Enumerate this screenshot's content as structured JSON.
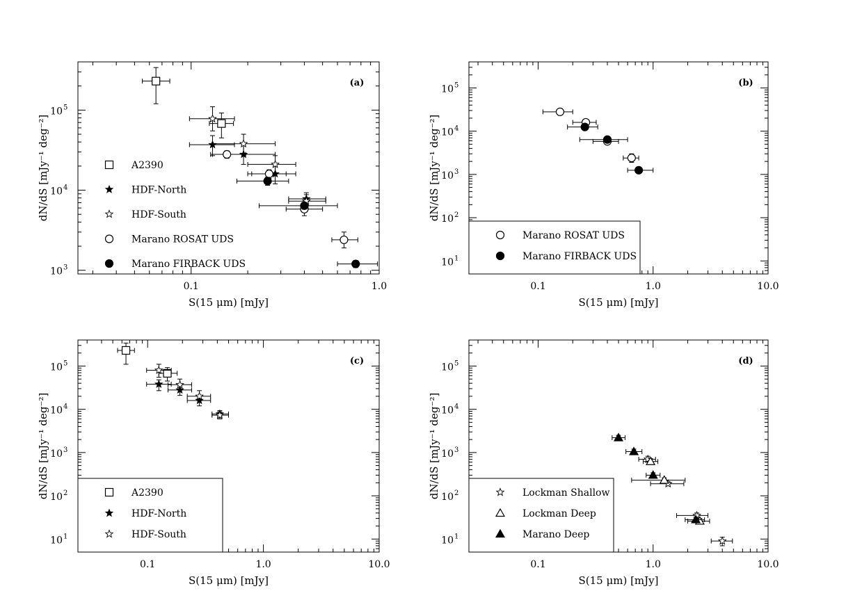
{
  "chart_data": [
    {
      "type": "scatter",
      "panel_label": "(a)",
      "xlabel": "S(15 μm) [mJy]",
      "ylabel": "dN/dS [mJy⁻¹ deg⁻²]",
      "xscale": "log",
      "yscale": "log",
      "xlim": [
        0.025,
        1.0
      ],
      "ylim": [
        900,
        400000
      ],
      "xticks": [
        {
          "value": 0.1,
          "label": "0.1"
        },
        {
          "value": 1.0,
          "label": "1.0"
        }
      ],
      "yticks": [
        {
          "value": 1000,
          "base": "10",
          "exp": "3"
        },
        {
          "value": 10000,
          "base": "10",
          "exp": "4"
        },
        {
          "value": 100000,
          "base": "10",
          "exp": "5"
        }
      ],
      "legend_position": "left-middle",
      "legend_boxed": false,
      "series": [
        {
          "name": "A2390",
          "marker": "open-square",
          "points": [
            {
              "x": 0.065,
              "y": 230000,
              "xerr": [
                0.055,
                0.077
              ],
              "yerr": [
                120000,
                340000
              ]
            },
            {
              "x": 0.145,
              "y": 68000,
              "xerr": [
                0.125,
                0.168
              ],
              "yerr": [
                45000,
                92000
              ]
            }
          ]
        },
        {
          "name": "HDF-North",
          "marker": "filled-star",
          "points": [
            {
              "x": 0.13,
              "y": 37000,
              "xerr": [
                0.098,
                0.17
              ],
              "yerr": [
                27000,
                48000
              ]
            },
            {
              "x": 0.19,
              "y": 28000,
              "xerr": [
                0.13,
                0.28
              ],
              "yerr": [
                21000,
                36000
              ]
            },
            {
              "x": 0.28,
              "y": 16000,
              "xerr": [
                0.2,
                0.36
              ],
              "yerr": [
                12000,
                20000
              ]
            },
            {
              "x": 0.41,
              "y": 7800,
              "xerr": [
                0.33,
                0.52
              ],
              "yerr": [
                6500,
                9300
              ]
            }
          ]
        },
        {
          "name": "HDF-South",
          "marker": "open-star",
          "points": [
            {
              "x": 0.13,
              "y": 78000,
              "xerr": [
                0.098,
                0.17
              ],
              "yerr": [
                55000,
                110000
              ]
            },
            {
              "x": 0.19,
              "y": 38000,
              "xerr": [
                0.13,
                0.28
              ],
              "yerr": [
                28000,
                50000
              ]
            },
            {
              "x": 0.28,
              "y": 21000,
              "xerr": [
                0.2,
                0.36
              ],
              "yerr": [
                16000,
                27000
              ]
            },
            {
              "x": 0.41,
              "y": 7300,
              "xerr": [
                0.33,
                0.52
              ],
              "yerr": [
                6000,
                8800
              ]
            }
          ]
        },
        {
          "name": "Marano ROSAT UDS",
          "marker": "open-circle",
          "points": [
            {
              "x": 0.155,
              "y": 28000,
              "xerr": [
                0.127,
                0.195
              ],
              "yerr": [
                25000,
                31000
              ]
            },
            {
              "x": 0.26,
              "y": 16000,
              "xerr": [
                0.21,
                0.32
              ],
              "yerr": [
                14000,
                18000
              ]
            },
            {
              "x": 0.4,
              "y": 5800,
              "xerr": [
                0.32,
                0.5
              ],
              "yerr": [
                4800,
                7000
              ]
            },
            {
              "x": 0.65,
              "y": 2400,
              "xerr": [
                0.56,
                0.77
              ],
              "yerr": [
                1900,
                3000
              ]
            }
          ]
        },
        {
          "name": "Marano FIRBACK UDS",
          "marker": "filled-circle",
          "points": [
            {
              "x": 0.255,
              "y": 13000,
              "xerr": [
                0.175,
                0.33
              ],
              "yerr": [
                11500,
                14500
              ]
            },
            {
              "x": 0.4,
              "y": 6400,
              "xerr": [
                0.23,
                0.6
              ],
              "yerr": [
                5800,
                7000
              ]
            },
            {
              "x": 0.75,
              "y": 1200,
              "xerr": [
                0.6,
                0.98
              ],
              "yerr": [
                1080,
                1330
              ]
            }
          ]
        }
      ]
    },
    {
      "type": "scatter",
      "panel_label": "(b)",
      "xlabel": "S(15 μm) [mJy]",
      "ylabel": "dN/dS [mJy⁻¹ deg⁻²]",
      "xscale": "log",
      "yscale": "log",
      "xlim": [
        0.025,
        10.0
      ],
      "ylim": [
        5,
        400000
      ],
      "xticks": [
        {
          "value": 0.1,
          "label": "0.1"
        },
        {
          "value": 1.0,
          "label": "1.0"
        },
        {
          "value": 10.0,
          "label": "10.0"
        }
      ],
      "yticks": [
        {
          "value": 10,
          "base": "10",
          "exp": "1"
        },
        {
          "value": 100,
          "base": "10",
          "exp": "2"
        },
        {
          "value": 1000,
          "base": "10",
          "exp": "3"
        },
        {
          "value": 10000,
          "base": "10",
          "exp": "4"
        },
        {
          "value": 100000,
          "base": "10",
          "exp": "5"
        }
      ],
      "legend_position": "bottom-left",
      "legend_boxed": true,
      "series": [
        {
          "name": "Marano ROSAT UDS",
          "marker": "open-circle",
          "points": [
            {
              "x": 0.155,
              "y": 28000,
              "xerr": [
                0.11,
                0.2
              ],
              "yerr": [
                25000,
                31000
              ]
            },
            {
              "x": 0.26,
              "y": 16000,
              "xerr": [
                0.2,
                0.32
              ],
              "yerr": [
                14000,
                18000
              ]
            },
            {
              "x": 0.4,
              "y": 5800,
              "xerr": [
                0.3,
                0.5
              ],
              "yerr": [
                5000,
                6700
              ]
            },
            {
              "x": 0.65,
              "y": 2400,
              "xerr": [
                0.55,
                0.75
              ],
              "yerr": [
                1900,
                3000
              ]
            }
          ]
        },
        {
          "name": "Marano FIRBACK UDS",
          "marker": "filled-circle",
          "points": [
            {
              "x": 0.255,
              "y": 12500,
              "xerr": [
                0.18,
                0.33
              ],
              "yerr": [
                11000,
                14000
              ]
            },
            {
              "x": 0.4,
              "y": 6400,
              "xerr": [
                0.23,
                0.6
              ],
              "yerr": [
                5800,
                7000
              ]
            },
            {
              "x": 0.75,
              "y": 1250,
              "xerr": [
                0.6,
                1.0
              ],
              "yerr": [
                1100,
                1400
              ]
            }
          ]
        }
      ]
    },
    {
      "type": "scatter",
      "panel_label": "(c)",
      "xlabel": "S(15 μm) [mJy]",
      "ylabel": "dN/dS [mJy⁻¹ deg⁻²]",
      "xscale": "log",
      "yscale": "log",
      "xlim": [
        0.025,
        10.0
      ],
      "ylim": [
        5,
        400000
      ],
      "xticks": [
        {
          "value": 0.1,
          "label": "0.1"
        },
        {
          "value": 1.0,
          "label": "1.0"
        },
        {
          "value": 10.0,
          "label": "10.0"
        }
      ],
      "yticks": [
        {
          "value": 10,
          "base": "10",
          "exp": "1"
        },
        {
          "value": 100,
          "base": "10",
          "exp": "2"
        },
        {
          "value": 1000,
          "base": "10",
          "exp": "3"
        },
        {
          "value": 10000,
          "base": "10",
          "exp": "4"
        },
        {
          "value": 100000,
          "base": "10",
          "exp": "5"
        }
      ],
      "legend_position": "bottom-left",
      "legend_boxed": true,
      "series": [
        {
          "name": "A2390",
          "marker": "open-square",
          "points": [
            {
              "x": 0.065,
              "y": 230000,
              "xerr": [
                0.055,
                0.077
              ],
              "yerr": [
                110000,
                340000
              ]
            },
            {
              "x": 0.148,
              "y": 68000,
              "xerr": [
                0.125,
                0.18
              ],
              "yerr": [
                45000,
                92000
              ]
            }
          ]
        },
        {
          "name": "HDF-North",
          "marker": "filled-star",
          "points": [
            {
              "x": 0.125,
              "y": 38000,
              "xerr": [
                0.098,
                0.16
              ],
              "yerr": [
                27000,
                48000
              ]
            },
            {
              "x": 0.19,
              "y": 28000,
              "xerr": [
                0.15,
                0.24
              ],
              "yerr": [
                21000,
                36000
              ]
            },
            {
              "x": 0.28,
              "y": 16000,
              "xerr": [
                0.22,
                0.35
              ],
              "yerr": [
                12000,
                20000
              ]
            },
            {
              "x": 0.42,
              "y": 7800,
              "xerr": [
                0.36,
                0.5
              ],
              "yerr": [
                6500,
                9300
              ]
            }
          ]
        },
        {
          "name": "HDF-South",
          "marker": "open-star",
          "points": [
            {
              "x": 0.125,
              "y": 80000,
              "xerr": [
                0.098,
                0.16
              ],
              "yerr": [
                55000,
                110000
              ]
            },
            {
              "x": 0.19,
              "y": 37000,
              "xerr": [
                0.15,
                0.24
              ],
              "yerr": [
                28000,
                50000
              ]
            },
            {
              "x": 0.28,
              "y": 20000,
              "xerr": [
                0.22,
                0.35
              ],
              "yerr": [
                16000,
                27000
              ]
            },
            {
              "x": 0.42,
              "y": 7300,
              "xerr": [
                0.36,
                0.5
              ],
              "yerr": [
                6000,
                8800
              ]
            }
          ]
        }
      ]
    },
    {
      "type": "scatter",
      "panel_label": "(d)",
      "xlabel": "S(15 μm) [mJy]",
      "ylabel": "dN/dS [mJy⁻¹ deg⁻²]",
      "xscale": "log",
      "yscale": "log",
      "xlim": [
        0.025,
        10.0
      ],
      "ylim": [
        5,
        400000
      ],
      "xticks": [
        {
          "value": 0.1,
          "label": "0.1"
        },
        {
          "value": 1.0,
          "label": "1.0"
        },
        {
          "value": 10.0,
          "label": "10.0"
        }
      ],
      "yticks": [
        {
          "value": 10,
          "base": "10",
          "exp": "1"
        },
        {
          "value": 100,
          "base": "10",
          "exp": "2"
        },
        {
          "value": 1000,
          "base": "10",
          "exp": "3"
        },
        {
          "value": 10000,
          "base": "10",
          "exp": "4"
        },
        {
          "value": 100000,
          "base": "10",
          "exp": "5"
        }
      ],
      "legend_position": "bottom-left",
      "legend_boxed": true,
      "series": [
        {
          "name": "Lockman Shallow",
          "marker": "open-star",
          "points": [
            {
              "x": 0.9,
              "y": 700,
              "xerr": [
                0.75,
                1.05
              ],
              "yerr": [
                600,
                820
              ]
            },
            {
              "x": 1.35,
              "y": 190,
              "xerr": [
                0.95,
                1.85
              ],
              "yerr": [
                170,
                210
              ]
            },
            {
              "x": 2.4,
              "y": 35,
              "xerr": [
                1.6,
                3.0
              ],
              "yerr": [
                30,
                40
              ]
            },
            {
              "x": 4.0,
              "y": 9,
              "xerr": [
                3.2,
                4.9
              ],
              "yerr": [
                7,
                11
              ]
            }
          ]
        },
        {
          "name": "Lockman Deep",
          "marker": "open-triangle",
          "points": [
            {
              "x": 0.95,
              "y": 620,
              "xerr": [
                0.82,
                1.1
              ],
              "yerr": [
                530,
                720
              ]
            },
            {
              "x": 1.25,
              "y": 230,
              "xerr": [
                0.65,
                1.9
              ],
              "yerr": [
                200,
                260
              ]
            },
            {
              "x": 2.55,
              "y": 26,
              "xerr": [
                2.0,
                3.1
              ],
              "yerr": [
                22,
                30
              ]
            }
          ]
        },
        {
          "name": "Marano Deep",
          "marker": "filled-triangle",
          "points": [
            {
              "x": 0.5,
              "y": 2200,
              "xerr": [
                0.44,
                0.57
              ],
              "yerr": [
                1950,
                2500
              ]
            },
            {
              "x": 0.68,
              "y": 1050,
              "xerr": [
                0.58,
                0.8
              ],
              "yerr": [
                920,
                1200
              ]
            },
            {
              "x": 1.0,
              "y": 300,
              "xerr": [
                0.87,
                1.15
              ],
              "yerr": [
                265,
                340
              ]
            },
            {
              "x": 2.35,
              "y": 28,
              "xerr": [
                1.9,
                2.8
              ],
              "yerr": [
                24,
                32
              ]
            }
          ]
        }
      ]
    }
  ]
}
